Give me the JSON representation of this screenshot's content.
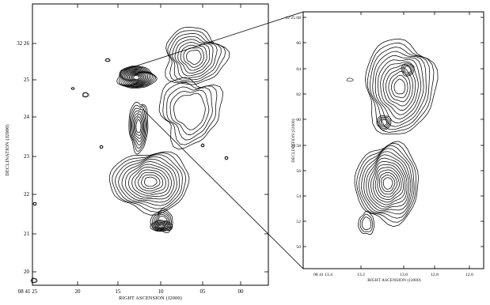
{
  "left_panel": {
    "x_axis_label": "RIGHT ASCENSION (J2000)",
    "y_axis_label": "DECLINATION (J2000)",
    "x_ticks": [
      "08 41 25",
      "20",
      "15",
      "10",
      "05",
      "00"
    ],
    "y_ticks": [
      "32 26",
      "25",
      "24",
      "23",
      "22",
      "21",
      "20"
    ]
  },
  "right_panel": {
    "x_axis_label": "RIGHT ASCENSION (J2000)",
    "y_axis_label": "DECLINATION (J2000)",
    "x_ticks": [
      "08 41 13.4",
      "13.2",
      "13.0",
      "12.8",
      "12.6"
    ],
    "y_ticks": [
      "32 25 08",
      "06",
      "04",
      "02",
      "00",
      "24 58",
      "56",
      "54",
      "52",
      "50"
    ]
  }
}
